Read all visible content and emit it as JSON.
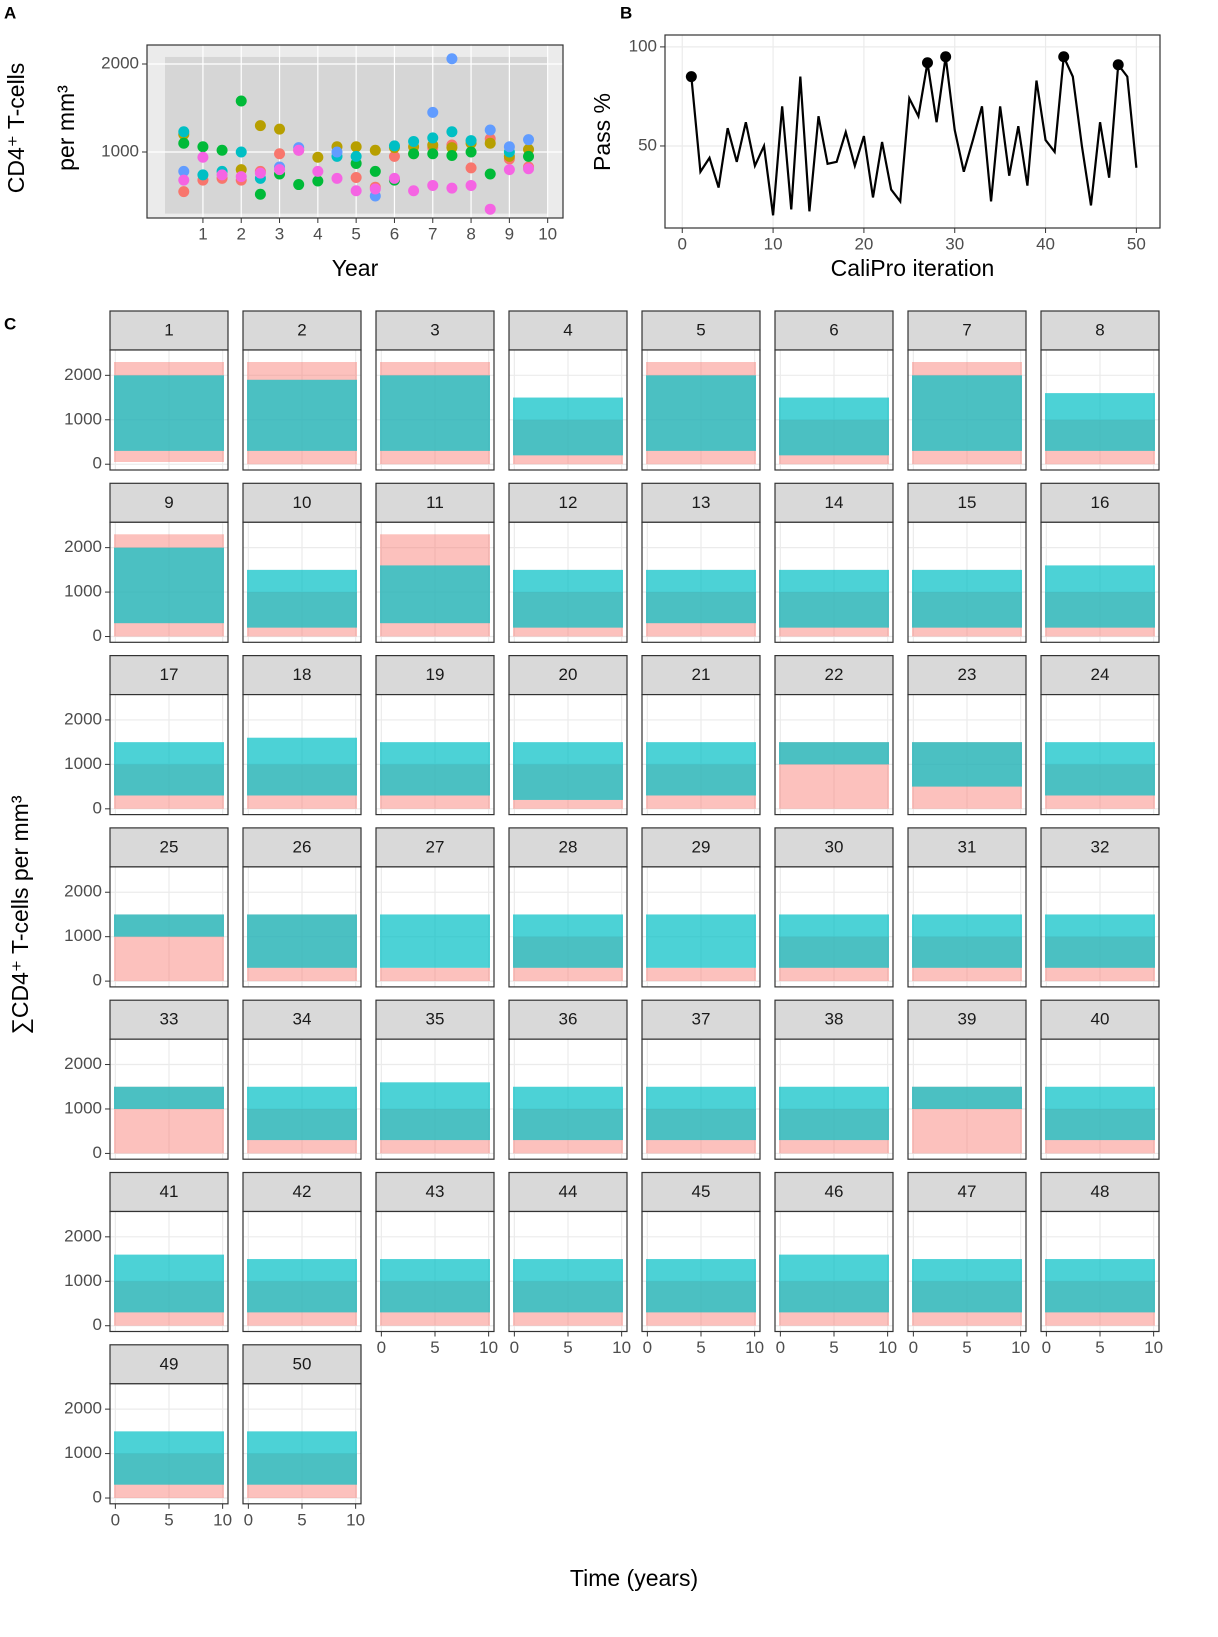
{
  "chart_data": [
    {
      "type": "scatter",
      "panel": "A",
      "xlabel": "Year",
      "ylabel": [
        "CD4⁺ T-cells",
        "per mm³"
      ],
      "x": [
        0.5,
        1,
        1.5,
        2,
        2.5,
        3,
        3.5,
        4,
        4.5,
        5,
        5.5,
        6,
        6.5,
        7,
        7.5,
        8,
        8.5,
        9,
        9.5
      ],
      "series": [
        {
          "color": "#F8766D",
          "values": [
            550,
            680,
            700,
            680,
            780,
            980,
            1020,
            null,
            null,
            710,
            600,
            950,
            980,
            1050,
            1080,
            820,
            1150,
            920,
            830
          ]
        },
        {
          "color": "#B79F00",
          "values": [
            1200,
            null,
            null,
            800,
            1300,
            1260,
            null,
            940,
            1060,
            1060,
            1020,
            1050,
            1060,
            1080,
            1050,
            1100,
            1100,
            950,
            1030
          ]
        },
        {
          "color": "#00BA38",
          "values": [
            1100,
            1060,
            1020,
            1580,
            520,
            750,
            630,
            670,
            null,
            870,
            780,
            680,
            980,
            980,
            960,
            1000,
            750,
            null,
            950
          ]
        },
        {
          "color": "#00BFC4",
          "values": [
            1230,
            740,
            780,
            1000,
            700,
            null,
            null,
            null,
            950,
            950,
            null,
            1070,
            1120,
            1160,
            1230,
            1130,
            null,
            1000,
            null
          ]
        },
        {
          "color": "#619CFF",
          "values": [
            780,
            null,
            null,
            null,
            null,
            830,
            1050,
            null,
            1000,
            null,
            500,
            null,
            null,
            1450,
            2060,
            null,
            1250,
            1060,
            1140
          ]
        },
        {
          "color": "#F564E3",
          "values": [
            680,
            940,
            740,
            720,
            760,
            800,
            1020,
            780,
            700,
            560,
            580,
            700,
            560,
            620,
            590,
            620,
            350,
            800,
            810
          ]
        }
      ],
      "shaded_range": [
        300,
        2080
      ],
      "xlim": [
        -0.46,
        10.4
      ],
      "xticks": [
        1,
        2,
        3,
        4,
        5,
        6,
        7,
        8,
        9,
        10
      ],
      "ylim": [
        250,
        2216
      ],
      "yticks": [
        1000,
        2000
      ],
      "grid": true
    },
    {
      "type": "line",
      "panel": "B",
      "xlabel": "CaliPro iteration",
      "ylabel": "Pass %",
      "x": [
        1,
        2,
        3,
        4,
        5,
        6,
        7,
        8,
        9,
        10,
        11,
        12,
        13,
        14,
        15,
        16,
        17,
        18,
        19,
        20,
        21,
        22,
        23,
        24,
        25,
        26,
        27,
        28,
        29,
        30,
        31,
        32,
        33,
        34,
        35,
        36,
        37,
        38,
        39,
        40,
        41,
        42,
        43,
        44,
        45,
        46,
        47,
        48,
        49,
        50
      ],
      "values": [
        85,
        37,
        44,
        29,
        59,
        42,
        62,
        40,
        50,
        15,
        70,
        18,
        85,
        17,
        65,
        41,
        42,
        57,
        40,
        55,
        24,
        52,
        28,
        22,
        74,
        65,
        92,
        62,
        95,
        58,
        37,
        53,
        70,
        22,
        70,
        35,
        60,
        30,
        83,
        53,
        47,
        95,
        85,
        50,
        20,
        62,
        34,
        91,
        85,
        39
      ],
      "color": "#000000",
      "points": {
        "x": [
          1,
          27,
          29,
          42,
          48
        ],
        "values": [
          85,
          92,
          95,
          95,
          91
        ]
      },
      "xlim": [
        -1.9,
        52.6
      ],
      "xticks": [
        0,
        10,
        20,
        30,
        40,
        50
      ],
      "ylim": [
        8.6,
        106
      ],
      "yticks": [
        50,
        100
      ],
      "grid": true
    },
    {
      "type": "line",
      "panel": "C",
      "xlabel": "Time (years)",
      "ylabel": "∑CD4⁺ T-cells per mm³",
      "pass_color": "#00BFC4",
      "fail_color": "#F8766D",
      "xlim": [
        -0.5,
        10.5
      ],
      "xticks": [
        0,
        5,
        10
      ],
      "ylim": [
        -130,
        2570
      ],
      "yticks": [
        0,
        1000,
        2000
      ],
      "grid": true,
      "facets": [
        {
          "label": "1",
          "pass": [
            300,
            2000
          ],
          "fail": [
            50,
            2300
          ]
        },
        {
          "label": "2",
          "pass": [
            300,
            1900
          ],
          "fail": [
            0,
            2300
          ]
        },
        {
          "label": "3",
          "pass": [
            300,
            2000
          ],
          "fail": [
            0,
            2300
          ]
        },
        {
          "label": "4",
          "pass": [
            200,
            1500
          ],
          "fail": [
            0,
            1000
          ]
        },
        {
          "label": "5",
          "pass": [
            300,
            2000
          ],
          "fail": [
            0,
            2300
          ]
        },
        {
          "label": "6",
          "pass": [
            200,
            1500
          ],
          "fail": [
            0,
            1000
          ]
        },
        {
          "label": "7",
          "pass": [
            300,
            2000
          ],
          "fail": [
            0,
            2300
          ]
        },
        {
          "label": "8",
          "pass": [
            300,
            1600
          ],
          "fail": [
            0,
            1000
          ]
        },
        {
          "label": "9",
          "pass": [
            300,
            2000
          ],
          "fail": [
            0,
            2300
          ]
        },
        {
          "label": "10",
          "pass": [
            200,
            1500
          ],
          "fail": [
            0,
            1000
          ]
        },
        {
          "label": "11",
          "pass": [
            300,
            1600
          ],
          "fail": [
            0,
            2300
          ]
        },
        {
          "label": "12",
          "pass": [
            200,
            1500
          ],
          "fail": [
            0,
            1000
          ]
        },
        {
          "label": "13",
          "pass": [
            300,
            1500
          ],
          "fail": [
            0,
            1000
          ]
        },
        {
          "label": "14",
          "pass": [
            200,
            1500
          ],
          "fail": [
            0,
            1000
          ]
        },
        {
          "label": "15",
          "pass": [
            200,
            1500
          ],
          "fail": [
            0,
            1000
          ]
        },
        {
          "label": "16",
          "pass": [
            200,
            1600
          ],
          "fail": [
            0,
            1000
          ]
        },
        {
          "label": "17",
          "pass": [
            300,
            1500
          ],
          "fail": [
            0,
            1000
          ]
        },
        {
          "label": "18",
          "pass": [
            300,
            1600
          ],
          "fail": [
            0,
            1000
          ]
        },
        {
          "label": "19",
          "pass": [
            300,
            1500
          ],
          "fail": [
            0,
            1000
          ]
        },
        {
          "label": "20",
          "pass": [
            200,
            1500
          ],
          "fail": [
            0,
            1000
          ]
        },
        {
          "label": "21",
          "pass": [
            300,
            1500
          ],
          "fail": [
            0,
            1000
          ]
        },
        {
          "label": "22",
          "pass": [
            1000,
            1500
          ],
          "fail": [
            0,
            1500
          ]
        },
        {
          "label": "23",
          "pass": [
            500,
            1500
          ],
          "fail": [
            0,
            1500
          ]
        },
        {
          "label": "24",
          "pass": [
            300,
            1500
          ],
          "fail": [
            0,
            1000
          ]
        },
        {
          "label": "25",
          "pass": [
            1000,
            1500
          ],
          "fail": [
            0,
            1500
          ]
        },
        {
          "label": "26",
          "pass": [
            300,
            1500
          ],
          "fail": [
            0,
            1500
          ]
        },
        {
          "label": "27",
          "pass": [
            300,
            1500
          ],
          "fail": [
            0,
            300
          ]
        },
        {
          "label": "28",
          "pass": [
            300,
            1500
          ],
          "fail": [
            0,
            1000
          ]
        },
        {
          "label": "29",
          "pass": [
            300,
            1500
          ],
          "fail": [
            0,
            300
          ]
        },
        {
          "label": "30",
          "pass": [
            300,
            1500
          ],
          "fail": [
            0,
            1000
          ]
        },
        {
          "label": "31",
          "pass": [
            300,
            1500
          ],
          "fail": [
            0,
            1000
          ]
        },
        {
          "label": "32",
          "pass": [
            300,
            1500
          ],
          "fail": [
            0,
            1000
          ]
        },
        {
          "label": "33",
          "pass": [
            1000,
            1500
          ],
          "fail": [
            0,
            1500
          ]
        },
        {
          "label": "34",
          "pass": [
            300,
            1500
          ],
          "fail": [
            0,
            1000
          ]
        },
        {
          "label": "35",
          "pass": [
            300,
            1600
          ],
          "fail": [
            0,
            1000
          ]
        },
        {
          "label": "36",
          "pass": [
            300,
            1500
          ],
          "fail": [
            0,
            1000
          ]
        },
        {
          "label": "37",
          "pass": [
            300,
            1500
          ],
          "fail": [
            0,
            1000
          ]
        },
        {
          "label": "38",
          "pass": [
            300,
            1500
          ],
          "fail": [
            0,
            1000
          ]
        },
        {
          "label": "39",
          "pass": [
            1000,
            1500
          ],
          "fail": [
            0,
            1500
          ]
        },
        {
          "label": "40",
          "pass": [
            300,
            1500
          ],
          "fail": [
            0,
            1000
          ]
        },
        {
          "label": "41",
          "pass": [
            300,
            1600
          ],
          "fail": [
            0,
            1000
          ]
        },
        {
          "label": "42",
          "pass": [
            300,
            1500
          ],
          "fail": [
            0,
            1000
          ]
        },
        {
          "label": "43",
          "pass": [
            300,
            1500
          ],
          "fail": [
            0,
            1000
          ]
        },
        {
          "label": "44",
          "pass": [
            300,
            1500
          ],
          "fail": [
            0,
            1000
          ]
        },
        {
          "label": "45",
          "pass": [
            300,
            1500
          ],
          "fail": [
            0,
            1000
          ]
        },
        {
          "label": "46",
          "pass": [
            300,
            1600
          ],
          "fail": [
            0,
            1000
          ]
        },
        {
          "label": "47",
          "pass": [
            300,
            1500
          ],
          "fail": [
            0,
            1000
          ]
        },
        {
          "label": "48",
          "pass": [
            300,
            1500
          ],
          "fail": [
            0,
            1000
          ]
        },
        {
          "label": "49",
          "pass": [
            300,
            1500
          ],
          "fail": [
            0,
            1000
          ]
        },
        {
          "label": "50",
          "pass": [
            300,
            1500
          ],
          "fail": [
            0,
            1000
          ]
        }
      ]
    }
  ]
}
